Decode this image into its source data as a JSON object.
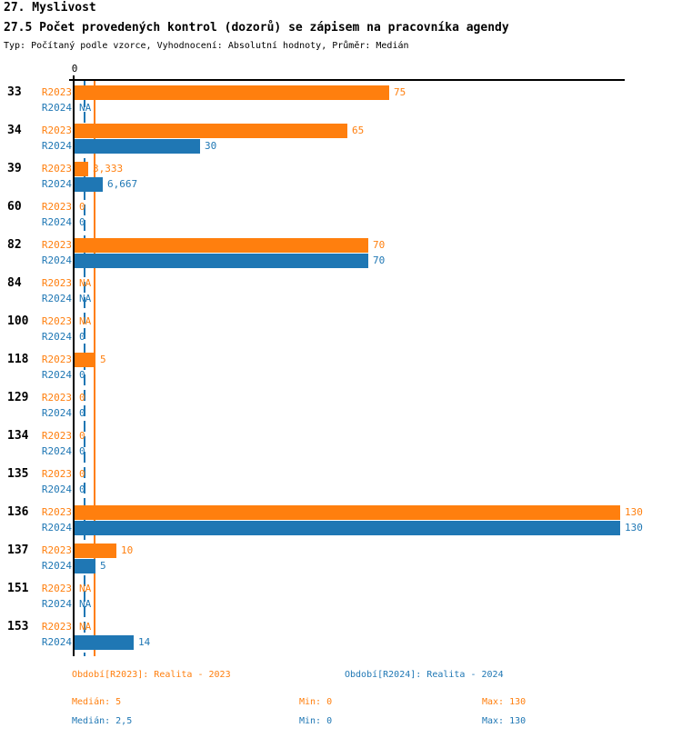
{
  "header": {
    "title_line1": "27. Myslivost",
    "title_line2": "27.5 Počet provedených kontrol (dozorů) se zápisem na pracovníka agendy",
    "subtitle": "Typ: Počítaný podle vzorce, Vyhodnocení: Absolutní hodnoty, Průměr: Medián"
  },
  "colors": {
    "r2023": "#ff7f0e",
    "r2024": "#1f77b4",
    "axis": "#000000",
    "background": "#ffffff"
  },
  "legend": {
    "r2023": "Období[R2023]: Realita - 2023",
    "r2024": "Období[R2024]: Realita - 2024"
  },
  "stats": {
    "r2023": {
      "median": "Medián: 5",
      "min": "Min: 0",
      "max": "Max: 130"
    },
    "r2024": {
      "median": "Medián: 2,5",
      "min": "Min: 0",
      "max": "Max: 130"
    }
  },
  "chart_data": {
    "type": "bar",
    "orientation": "horizontal",
    "title": "27.5 Počet provedených kontrol (dozorů) se zápisem na pracovníka agendy",
    "value_axis": {
      "zero_tick_label": "0",
      "min": 0,
      "max": 130,
      "grid": false
    },
    "legend_position": "bottom",
    "series_labels": {
      "r2023": "R2023",
      "r2024": "R2024"
    },
    "series": [
      {
        "id": "r2023",
        "name": "Období[R2023]: Realita - 2023",
        "color": "#ff7f0e",
        "median": 5,
        "min": 0,
        "max": 130
      },
      {
        "id": "r2024",
        "name": "Období[R2024]: Realita - 2024",
        "color": "#1f77b4",
        "median": 2.5,
        "min": 0,
        "max": 130
      }
    ],
    "median_lines": [
      {
        "series": "r2023",
        "value": 5,
        "style": "solid",
        "color": "#ff7f0e"
      },
      {
        "series": "r2024",
        "value": 2.5,
        "style": "dashed",
        "color": "#1f77b4"
      }
    ],
    "categories": [
      "33",
      "34",
      "39",
      "60",
      "82",
      "84",
      "100",
      "118",
      "129",
      "134",
      "135",
      "136",
      "137",
      "151",
      "153"
    ],
    "groups": [
      {
        "category": "33",
        "r2023": {
          "value": 75,
          "label": "75"
        },
        "r2024": {
          "value": null,
          "label": "NA"
        }
      },
      {
        "category": "34",
        "r2023": {
          "value": 65,
          "label": "65"
        },
        "r2024": {
          "value": 30,
          "label": "30"
        }
      },
      {
        "category": "39",
        "r2023": {
          "value": 3.333,
          "label": "3,333"
        },
        "r2024": {
          "value": 6.667,
          "label": "6,667"
        }
      },
      {
        "category": "60",
        "r2023": {
          "value": 0,
          "label": "0"
        },
        "r2024": {
          "value": 0,
          "label": "0"
        }
      },
      {
        "category": "82",
        "r2023": {
          "value": 70,
          "label": "70"
        },
        "r2024": {
          "value": 70,
          "label": "70"
        }
      },
      {
        "category": "84",
        "r2023": {
          "value": null,
          "label": "NA"
        },
        "r2024": {
          "value": null,
          "label": "NA"
        }
      },
      {
        "category": "100",
        "r2023": {
          "value": null,
          "label": "NA"
        },
        "r2024": {
          "value": 0,
          "label": "0"
        }
      },
      {
        "category": "118",
        "r2023": {
          "value": 5,
          "label": "5"
        },
        "r2024": {
          "value": 0,
          "label": "0"
        }
      },
      {
        "category": "129",
        "r2023": {
          "value": 0,
          "label": "0"
        },
        "r2024": {
          "value": 0,
          "label": "0"
        }
      },
      {
        "category": "134",
        "r2023": {
          "value": 0,
          "label": "0"
        },
        "r2024": {
          "value": 0,
          "label": "0"
        }
      },
      {
        "category": "135",
        "r2023": {
          "value": 0,
          "label": "0"
        },
        "r2024": {
          "value": 0,
          "label": "0"
        }
      },
      {
        "category": "136",
        "r2023": {
          "value": 130,
          "label": "130"
        },
        "r2024": {
          "value": 130,
          "label": "130"
        }
      },
      {
        "category": "137",
        "r2023": {
          "value": 10,
          "label": "10"
        },
        "r2024": {
          "value": 5,
          "label": "5"
        }
      },
      {
        "category": "151",
        "r2023": {
          "value": null,
          "label": "NA"
        },
        "r2024": {
          "value": null,
          "label": "NA"
        }
      },
      {
        "category": "153",
        "r2023": {
          "value": null,
          "label": "NA"
        },
        "r2024": {
          "value": 14,
          "label": "14"
        }
      }
    ]
  }
}
